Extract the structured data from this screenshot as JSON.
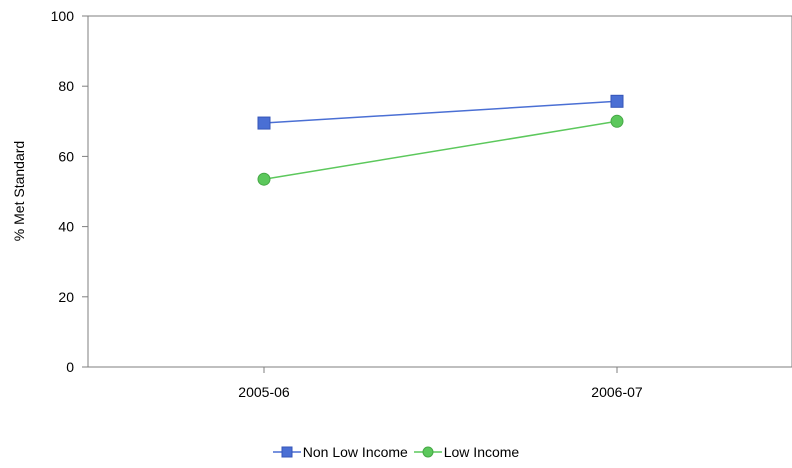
{
  "chart_data": {
    "type": "line",
    "categories": [
      "2005-06",
      "2006-07"
    ],
    "ylabel": "% Met Standard",
    "ylim": [
      0,
      100
    ],
    "yticks": [
      0,
      20,
      40,
      60,
      80,
      100
    ],
    "grid": false,
    "legend_position": "bottom",
    "series": [
      {
        "name": "Non Low Income",
        "values": [
          69.5,
          75.7
        ],
        "color": "#4a6fd4",
        "marker": "square"
      },
      {
        "name": "Low Income",
        "values": [
          53.5,
          70.0
        ],
        "color": "#5cc85c",
        "marker": "circle"
      }
    ]
  }
}
